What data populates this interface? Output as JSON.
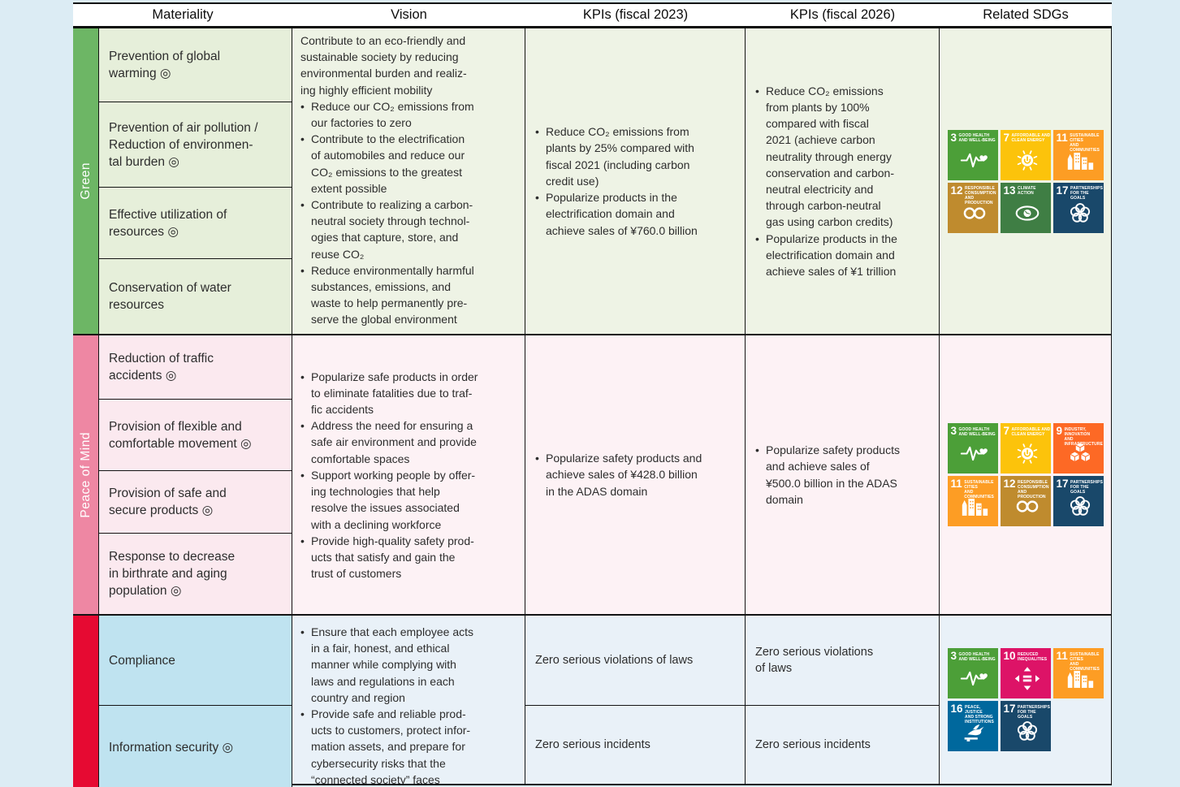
{
  "page": {
    "background": "#dcecf4",
    "border_color": "#141414",
    "text_color": "#2d2d2d",
    "bullet_char": "•"
  },
  "header": {
    "columns": [
      "Materiality",
      "Vision",
      "KPIs (fiscal 2023)",
      "KPIs (fiscal 2026)",
      "Related SDGs"
    ]
  },
  "sections": [
    {
      "name": "green",
      "label": "Green",
      "colors": {
        "bar": "#6db665",
        "cell": "#e6efda",
        "panel": "#eef3e5"
      },
      "rows": [
        {
          "materiality": "Prevention of global\nwarming ◎"
        },
        {
          "materiality": "Prevention of air pollution /\nReduction of environmen-\ntal burden ◎"
        },
        {
          "materiality": "Effective utilization of\nresources ◎"
        },
        {
          "materiality": "Conservation of water\nresources"
        }
      ],
      "vision": {
        "intro": "Contribute to an eco-friendly and\nsustainable society by reducing\nenvironmental burden and realiz-\ning highly efficient mobility",
        "bullets": [
          "Reduce our CO₂ emissions from\nour factories to zero",
          "Contribute to the electrification\nof automobiles and reduce our\nCO₂ emissions to the greatest\nextent possible",
          "Contribute to realizing a carbon-\nneutral society through technol-\nogies that capture, store, and\nreuse CO₂",
          "Reduce environmentally harmful\nsubstances, emissions, and\nwaste to help permanently pre-\nserve the global environment"
        ]
      },
      "kpi2023": {
        "bullets": [
          "Reduce CO₂ emissions from\nplants by 25% compared with\nfiscal 2021 (including carbon\ncredit use)",
          "Popularize products in the\nelectrification domain and\nachieve sales of ¥760.0 billion"
        ]
      },
      "kpi2026": {
        "bullets": [
          "Reduce CO₂ emissions\nfrom plants by 100%\ncompared with fiscal\n2021 (achieve carbon\nneutrality through energy\nconservation and carbon-\nneutral electricity and\nthrough carbon-neutral\ngas using carbon credits)",
          "Popularize products in the\nelectrification domain and\nachieve sales of ¥1 trillion"
        ]
      },
      "sdgs": [
        "3",
        "7",
        "11",
        "12",
        "13",
        "17"
      ]
    },
    {
      "name": "peace",
      "label": "Peace of Mind",
      "colors": {
        "bar": "#ee87a3",
        "cell": "#fbe9ef",
        "panel": "#fdf2f5"
      },
      "rows": [
        {
          "materiality": "Reduction of traffic\naccidents ◎"
        },
        {
          "materiality": "Provision of flexible and\ncomfortable movement ◎"
        },
        {
          "materiality": "Provision of safe and\nsecure products ◎"
        },
        {
          "materiality": "Response to decrease\nin birthrate and aging\npopulation ◎"
        }
      ],
      "vision": {
        "intro": "",
        "bullets": [
          "Popularize safe products in order\nto eliminate fatalities due to traf-\nfic accidents",
          "Address the need for ensuring a\nsafe air environment and provide\ncomfortable spaces",
          "Support working people by offer-\ning technologies that help\nresolve the issues associated\nwith a declining workforce",
          "Provide high-quality safety prod-\nucts that satisfy and gain the\ntrust of customers"
        ]
      },
      "kpi2023": {
        "bullets": [
          "Popularize safety products and\nachieve sales of ¥428.0 billion\nin the ADAS domain"
        ]
      },
      "kpi2026": {
        "bullets": [
          "Popularize safety products\nand achieve sales of\n¥500.0 billion in the ADAS\ndomain"
        ]
      },
      "sdgs": [
        "3",
        "7",
        "9",
        "11",
        "12",
        "17"
      ]
    },
    {
      "name": "foundation",
      "label": "",
      "colors": {
        "bar": "#e60a32",
        "cell": "#bfe3f0",
        "panel": "#e9f1f8"
      },
      "rows": [
        {
          "materiality": "Compliance",
          "kpi2023": "Zero serious violations of laws",
          "kpi2026": "Zero serious violations\nof laws"
        },
        {
          "materiality": "Information security ◎",
          "kpi2023": "Zero serious incidents",
          "kpi2026": "Zero serious incidents"
        }
      ],
      "vision": {
        "intro": "",
        "bullets": [
          "Ensure that each employee acts\nin a fair, honest, and ethical\nmanner while complying with\nlaws and regulations in each\ncountry and region",
          "Provide safe and reliable prod-\nucts to customers, protect infor-\nmation assets, and prepare for\ncybersecurity risks that the\n“connected society” faces"
        ]
      },
      "sdgs": [
        "3",
        "10",
        "11",
        "16",
        "17"
      ]
    }
  ],
  "sdg_goals": {
    "3": {
      "num": "3",
      "title": "GOOD HEALTH\nAND WELL-BEING",
      "color": "#4C9F38",
      "icon": "heartbeat-icon"
    },
    "7": {
      "num": "7",
      "title": "AFFORDABLE AND\nCLEAN ENERGY",
      "color": "#FCC30B",
      "icon": "sun-energy-icon"
    },
    "9": {
      "num": "9",
      "title": "INDUSTRY, INNOVATION\nAND INFRASTRUCTURE",
      "color": "#FD6925",
      "icon": "cubes-icon"
    },
    "10": {
      "num": "10",
      "title": "REDUCED\nINEQUALITIES",
      "color": "#DD1367",
      "icon": "equality-icon"
    },
    "11": {
      "num": "11",
      "title": "SUSTAINABLE CITIES\nAND COMMUNITIES",
      "color": "#FD9D24",
      "icon": "buildings-icon"
    },
    "12": {
      "num": "12",
      "title": "RESPONSIBLE\nCONSUMPTION\nAND PRODUCTION",
      "color": "#BF8B2E",
      "icon": "infinity-icon"
    },
    "13": {
      "num": "13",
      "title": "CLIMATE\nACTION",
      "color": "#3F7E44",
      "icon": "eye-climate-icon"
    },
    "16": {
      "num": "16",
      "title": "PEACE, JUSTICE\nAND STRONG\nINSTITUTIONS",
      "color": "#00689D",
      "icon": "dove-justice-icon"
    },
    "17": {
      "num": "17",
      "title": "PARTNERSHIPS\nFOR THE GOALS",
      "color": "#19486A",
      "icon": "partnership-circles-icon"
    }
  }
}
